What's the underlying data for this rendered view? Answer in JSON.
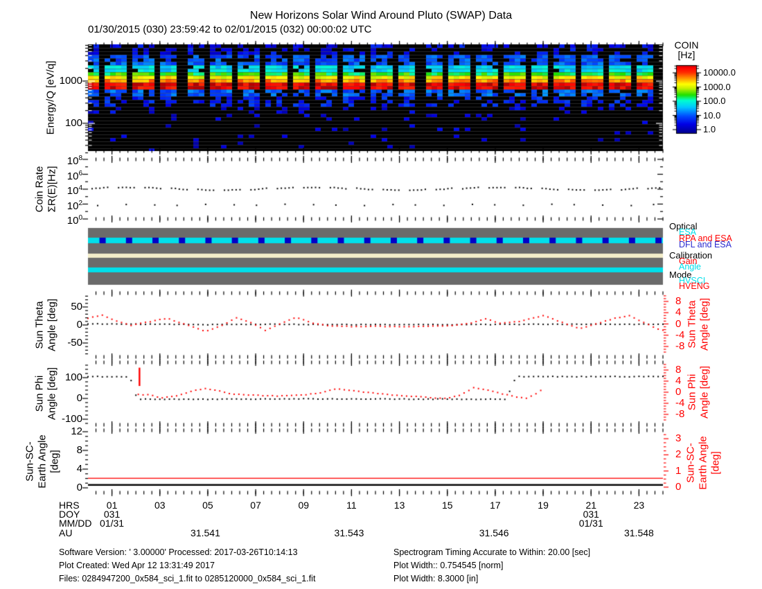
{
  "header": {
    "title": "New Horizons Solar Wind Around Pluto (SWAP) Data",
    "date_range": "01/30/2015 (030) 23:59:42 to 02/01/2015 (032) 00:00:02 UTC"
  },
  "colorbar": {
    "title_lines": [
      "COIN",
      "[Hz]"
    ],
    "tick_labels": [
      "10000.0",
      "1000.0",
      "100.0",
      "10.0",
      "1.0"
    ]
  },
  "axes": {
    "spectrogram": {
      "ylabel": "Energy/Q [eV/q]",
      "yticks": [
        {
          "label": "1000",
          "value": 1000
        },
        {
          "label": "100",
          "value": 100
        }
      ]
    },
    "coin": {
      "ylabel_lines": [
        "Coin Rate",
        "ΣR(E)[Hz]"
      ],
      "yticks": [
        {
          "base": "10",
          "exp": "8",
          "lg": 8
        },
        {
          "base": "10",
          "exp": "6",
          "lg": 6
        },
        {
          "base": "10",
          "exp": "4",
          "lg": 4
        },
        {
          "base": "10",
          "exp": "2",
          "lg": 2
        },
        {
          "base": "10",
          "exp": "0",
          "lg": 0
        }
      ]
    },
    "theta": {
      "ylabel_lines": [
        "Sun Theta",
        "Angle [deg]"
      ],
      "left_ticks": [
        {
          "label": "50",
          "value": 50
        },
        {
          "label": "0",
          "value": 0
        },
        {
          "label": "-50",
          "value": -50
        }
      ],
      "right_label_lines": [
        "Sun Theta",
        "Angle [deg]"
      ],
      "right_ticks": [
        {
          "label": "8",
          "value": 8
        },
        {
          "label": "4",
          "value": 4
        },
        {
          "label": "0",
          "value": 0
        },
        {
          "label": "-4",
          "value": -4
        },
        {
          "label": "-8",
          "value": -8
        }
      ]
    },
    "phi": {
      "ylabel_lines": [
        "Sun Phi",
        "Angle [deg]"
      ],
      "left_ticks": [
        {
          "label": "100",
          "value": 100
        },
        {
          "label": "0",
          "value": 0
        },
        {
          "label": "-100",
          "value": -100
        }
      ],
      "right_label_lines": [
        "Sun Phi",
        "Angle [deg]"
      ],
      "right_ticks": [
        {
          "label": "8",
          "value": 8
        },
        {
          "label": "4",
          "value": 4
        },
        {
          "label": "0",
          "value": 0
        },
        {
          "label": "-4",
          "value": -4
        },
        {
          "label": "-8",
          "value": -8
        }
      ]
    },
    "earth": {
      "ylabel_lines": [
        "Sun-SC-",
        "Earth Angle",
        "[deg]"
      ],
      "left_ticks": [
        {
          "label": "12",
          "value": 12
        },
        {
          "label": "8",
          "value": 8
        },
        {
          "label": "4",
          "value": 4
        },
        {
          "label": "0",
          "value": 0
        }
      ],
      "right_label_lines": [
        "Sun-SC-",
        "Earth Angle",
        "[deg]"
      ],
      "right_ticks": [
        {
          "label": "3",
          "value": 3
        },
        {
          "label": "2",
          "value": 2
        },
        {
          "label": "1",
          "value": 1
        },
        {
          "label": "0",
          "value": 0
        }
      ]
    }
  },
  "mode_legend": [
    {
      "label": "Optical",
      "color": "#000000",
      "indent": 0
    },
    {
      "label": "ESA",
      "color": "#00dfea",
      "indent": 1
    },
    {
      "label": "RPA and ESA",
      "color": "#ff0000",
      "indent": 1
    },
    {
      "label": "DFL and ESA",
      "color": "#2a2ad0",
      "indent": 1
    },
    {
      "label": "Calibration",
      "color": "#000000",
      "indent": 0
    },
    {
      "label": "Gain",
      "color": "#ff0000",
      "indent": 1
    },
    {
      "label": "Angle",
      "color": "#00dfea",
      "indent": 1
    },
    {
      "label": "Mode",
      "color": "#000000",
      "indent": 0
    },
    {
      "label": "HVSCI",
      "color": "#00dfea",
      "indent": 1
    },
    {
      "label": "HVENG",
      "color": "#ff0000",
      "indent": 1
    }
  ],
  "bottom_axis": {
    "captions": {
      "hrs": "HRS",
      "doy": "DOY",
      "mmdd": "MM/DD",
      "au": "AU"
    },
    "hour_labels": [
      {
        "hour": 1,
        "label": "01"
      },
      {
        "hour": 3,
        "label": "03"
      },
      {
        "hour": 5,
        "label": "05"
      },
      {
        "hour": 7,
        "label": "07"
      },
      {
        "hour": 9,
        "label": "09"
      },
      {
        "hour": 11,
        "label": "11"
      },
      {
        "hour": 13,
        "label": "13"
      },
      {
        "hour": 15,
        "label": "15"
      },
      {
        "hour": 17,
        "label": "17"
      },
      {
        "hour": 19,
        "label": "19"
      },
      {
        "hour": 21,
        "label": "21"
      },
      {
        "hour": 23,
        "label": "23"
      }
    ],
    "doy_entries": [
      {
        "hour": 1,
        "doy": "031",
        "mmdd": "01/31"
      },
      {
        "hour": 21,
        "doy": "031",
        "mmdd": "01/31"
      }
    ],
    "au_entries": [
      {
        "hour": 4.9,
        "label": "31.541"
      },
      {
        "hour": 10.9,
        "label": "31.543"
      },
      {
        "hour": 16.95,
        "label": "31.546"
      },
      {
        "hour": 23.0,
        "label": "31.548"
      }
    ]
  },
  "footer": {
    "left": [
      "Software Version:  ' 3.00000'  Processed: 2017-03-26T10:14:13",
      "Plot Created: Wed Apr 12 13:31:49 2017",
      "Files: 0284947200_0x584_sci_1.fit to 0285120000_0x584_sci_1.fit"
    ],
    "right": [
      "Spectrogram Timing Accurate to Within: 20.00 [sec]",
      "Plot Width:: 0.754545 [norm]",
      "Plot Width: 8.3000 [in]"
    ]
  },
  "colors": {
    "red": "#ff0000",
    "cyan_band": "#00dfea",
    "blue_square": "#0000c8",
    "cream_band": "#f2ecc8",
    "mode_bg": "#6b6b6b"
  },
  "chart_data": [
    {
      "id": "swap_spectrogram",
      "type": "heatmap",
      "x_range_hours": [
        0,
        24
      ],
      "x_date": "01/31/2015 (DOY 031)",
      "y_axis": "Energy/Q [eV/q]",
      "y_range": [
        22,
        7400
      ],
      "y_scale": "log",
      "value_axis": "COIN [Hz]",
      "value_range": [
        1,
        30000
      ],
      "value_scale": "log",
      "colormap": "rainbow",
      "bands": [
        {
          "energy_ev": [
            680,
            950
          ],
          "coin_hz": 15000,
          "fill": 1
        },
        {
          "energy_ev": [
            950,
            1100
          ],
          "coin_hz": 3200,
          "fill": 1
        },
        {
          "energy_ev": [
            1100,
            1350
          ],
          "coin_hz": 1200,
          "fill": 1
        },
        {
          "energy_ev": [
            1350,
            1600
          ],
          "coin_hz": 250,
          "fill": 1
        },
        {
          "energy_ev": [
            1600,
            2600
          ],
          "coin_hz": 60,
          "fill": 0.95
        },
        {
          "energy_ev": [
            2600,
            4500
          ],
          "coin_hz": 12,
          "fill": 0.75
        },
        {
          "energy_ev": [
            4500,
            7400
          ],
          "coin_hz": 4,
          "fill": 0.45
        },
        {
          "energy_ev": [
            580,
            680
          ],
          "coin_hz": 120,
          "fill": 0.95
        },
        {
          "energy_ev": [
            420,
            580
          ],
          "coin_hz": 15,
          "fill": 0.8
        },
        {
          "energy_ev": [
            250,
            420
          ],
          "coin_hz": 6,
          "fill": 0.45
        },
        {
          "energy_ev": [
            120,
            250
          ],
          "coin_hz": 3,
          "fill": 0.18
        },
        {
          "energy_ev": [
            22,
            120
          ],
          "coin_hz": 2.5,
          "fill": 0.07
        }
      ],
      "data_gap_period_hours": 1.105,
      "data_gap_width_hours": 0.26,
      "first_gap_center_hour": 0.61
    },
    {
      "id": "coin_rate",
      "type": "scatter",
      "y_scale": "log",
      "ylim": [
        1,
        100000000
      ],
      "series": [
        {
          "name": "high_rate_sum",
          "color": "#000000",
          "level_lg": 4.05,
          "wobble_lg": 0.18,
          "burst_period_hours": 1.105,
          "points_per_burst": 5
        },
        {
          "name": "low_rate_sum",
          "color": "#000000",
          "level_lg": 1.9,
          "wobble_lg": 0.2,
          "burst_period_hours": 1.105,
          "points_per_burst": 1
        }
      ]
    },
    {
      "id": "instrument_modes",
      "type": "timeline",
      "rows": [
        {
          "group": "Optical",
          "value": "ESA",
          "color": "#00dfea",
          "pulse_value": "DFL and ESA",
          "pulse_color": "#0000c8",
          "pulse_period_hours": 1.105
        },
        {
          "group": "Calibration",
          "value": "none",
          "color": "#f2ecc8"
        },
        {
          "group": "Mode",
          "value": "HVSCI",
          "color": "#00dfea"
        }
      ]
    },
    {
      "id": "sun_theta",
      "type": "scatter",
      "left_ylim": [
        -88,
        88
      ],
      "right_ylim": [
        -11.3,
        11.3
      ],
      "series": [
        {
          "name": "theta_left_deg",
          "color": "#000000",
          "axis": "left",
          "range_hours": [
            0,
            24
          ],
          "keyframes": [
            [
              0,
              3
            ],
            [
              3,
              2
            ],
            [
              5,
              1
            ],
            [
              8,
              2
            ],
            [
              10,
              1
            ],
            [
              13,
              1
            ],
            [
              16,
              1
            ],
            [
              19,
              2
            ],
            [
              22,
              2
            ],
            [
              24,
              2
            ]
          ]
        },
        {
          "name": "theta_right_deg",
          "color": "#ff0000",
          "axis": "right",
          "range_hours": [
            0,
            24
          ],
          "keyframes": [
            [
              0,
              2
            ],
            [
              0.6,
              3.2
            ],
            [
              1.2,
              1
            ],
            [
              1.8,
              -0.5
            ],
            [
              2.4,
              0.5
            ],
            [
              3.3,
              2
            ],
            [
              4,
              0
            ],
            [
              4.9,
              -2.6
            ],
            [
              5.6,
              -0.5
            ],
            [
              6.2,
              2.2
            ],
            [
              6.8,
              0.5
            ],
            [
              7.4,
              -2.3
            ],
            [
              8,
              0
            ],
            [
              8.7,
              2.3
            ],
            [
              9.4,
              0.3
            ],
            [
              10,
              -0.6
            ],
            [
              11,
              -0.9
            ],
            [
              12,
              -0.8
            ],
            [
              13,
              -1
            ],
            [
              14,
              -0.9
            ],
            [
              15,
              -0.7
            ],
            [
              16,
              0.3
            ],
            [
              16.6,
              1.8
            ],
            [
              17.2,
              0.3
            ],
            [
              18,
              0.8
            ],
            [
              19,
              3
            ],
            [
              19.8,
              0.5
            ],
            [
              20.5,
              -1.7
            ],
            [
              21.2,
              0
            ],
            [
              22,
              2
            ],
            [
              22.6,
              3
            ],
            [
              23.2,
              0.5
            ],
            [
              23.9,
              -2.2
            ]
          ]
        }
      ]
    },
    {
      "id": "sun_phi",
      "type": "scatter",
      "left_ylim": [
        -127,
        173
      ],
      "right_ylim": [
        -10.6,
        10.8
      ],
      "red_spike": {
        "hour": 2.15,
        "left_deg_range": [
          60,
          148
        ]
      },
      "series": [
        {
          "name": "phi_left_deg",
          "color": "#000000",
          "axis": "left",
          "range_hours": [
            0,
            24
          ],
          "keyframes": [
            [
              0,
              105
            ],
            [
              1.7,
              105
            ],
            [
              1.85,
              75
            ],
            [
              2.0,
              15
            ],
            [
              2.1,
              -3
            ],
            [
              5,
              -4
            ],
            [
              9,
              -2
            ],
            [
              13,
              -3
            ],
            [
              17.4,
              -4
            ],
            [
              17.55,
              20
            ],
            [
              17.7,
              60
            ],
            [
              17.85,
              100
            ],
            [
              18,
              105
            ],
            [
              24,
              105
            ]
          ]
        },
        {
          "name": "phi_right_deg",
          "color": "#ff0000",
          "axis": "right",
          "range_hours": [
            2.1,
            19
          ],
          "keyframes": [
            [
              2.1,
              -0.8
            ],
            [
              2.6,
              -1
            ],
            [
              3.1,
              -2.1
            ],
            [
              3.7,
              -1.3
            ],
            [
              4.3,
              0.3
            ],
            [
              4.9,
              1.4
            ],
            [
              5.4,
              0.6
            ],
            [
              6,
              -0.6
            ],
            [
              7,
              -1.1
            ],
            [
              8,
              -1.4
            ],
            [
              9,
              -1
            ],
            [
              9.7,
              -0.2
            ],
            [
              10.4,
              1.3
            ],
            [
              11,
              0.6
            ],
            [
              11.8,
              -0.2
            ],
            [
              12.6,
              -0.9
            ],
            [
              13.4,
              -1.4
            ],
            [
              14.2,
              -1.9
            ],
            [
              14.9,
              -2.3
            ],
            [
              15.5,
              -1.2
            ],
            [
              16.1,
              1.6
            ],
            [
              16.7,
              0.8
            ],
            [
              17.2,
              -0.4
            ],
            [
              17.8,
              -1.6
            ],
            [
              18.3,
              -2.2
            ],
            [
              18.7,
              -0.5
            ],
            [
              19,
              1.2
            ]
          ]
        }
      ]
    },
    {
      "id": "sun_sc_earth",
      "type": "line",
      "left_ylim": [
        -1.04,
        12.3
      ],
      "right_ylim": [
        -0.34,
        3.52
      ],
      "series": [
        {
          "name": "earth_angle_left_deg",
          "color": "#000000",
          "axis": "left",
          "value": 0.62
        },
        {
          "name": "earth_angle_right_deg",
          "color": "#ff0000",
          "axis": "right",
          "value": 0.55
        }
      ]
    }
  ]
}
